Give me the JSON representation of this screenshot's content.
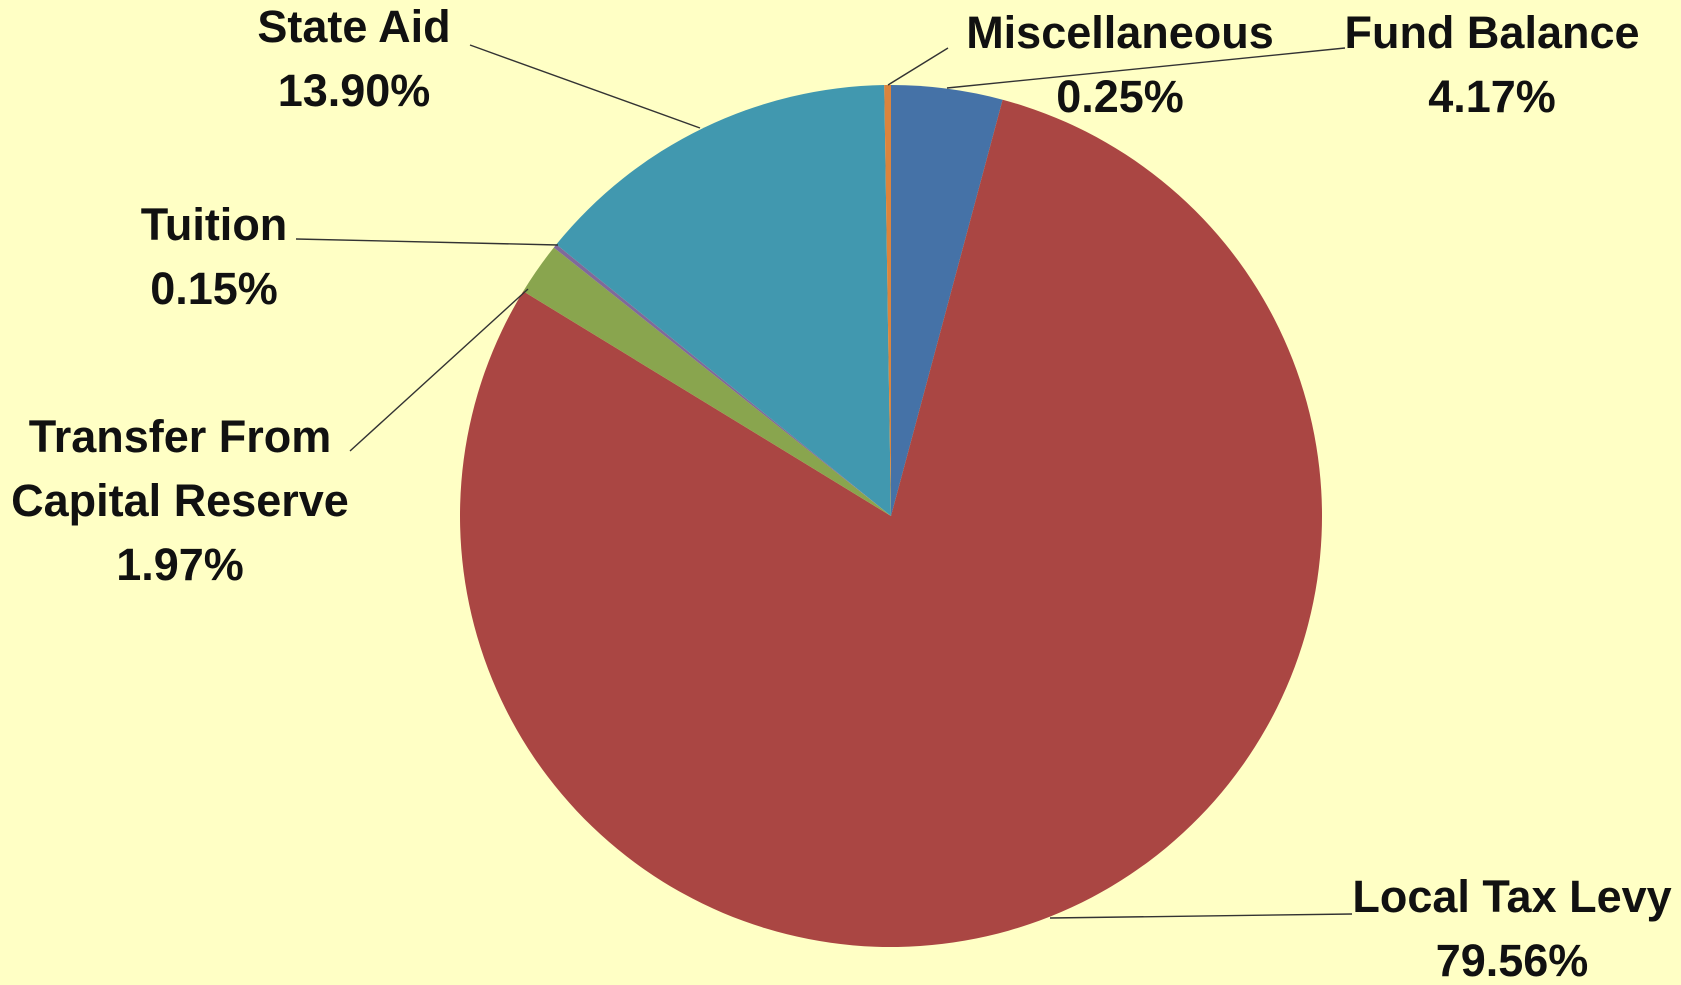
{
  "chart_data": {
    "type": "pie",
    "categories": [
      "Fund Balance",
      "Local Tax Levy",
      "Transfer From Capital Reserve",
      "Tuition",
      "State Aid",
      "Miscellaneous"
    ],
    "values": [
      4.17,
      79.56,
      1.97,
      0.15,
      13.9,
      0.25
    ],
    "value_labels": [
      "4.17%",
      "79.56%",
      "1.97%",
      "0.15%",
      "13.90%",
      "0.25%"
    ],
    "label_lines": [
      [
        "Fund Balance",
        "4.17%"
      ],
      [
        "Local Tax Levy",
        "79.56%"
      ],
      [
        "Transfer From",
        "Capital Reserve",
        "1.97%"
      ],
      [
        "Tuition",
        "0.15%"
      ],
      [
        "State Aid",
        "13.90%"
      ],
      [
        "Miscellaneous",
        "0.25%"
      ]
    ],
    "colors": [
      "#4572A7",
      "#AA4643",
      "#89A54E",
      "#80699B",
      "#4198AF",
      "#DB843D"
    ],
    "background": "#FFFFC5",
    "start_angle_deg": 0,
    "direction": "clockwise",
    "legend": "none",
    "title": ""
  }
}
